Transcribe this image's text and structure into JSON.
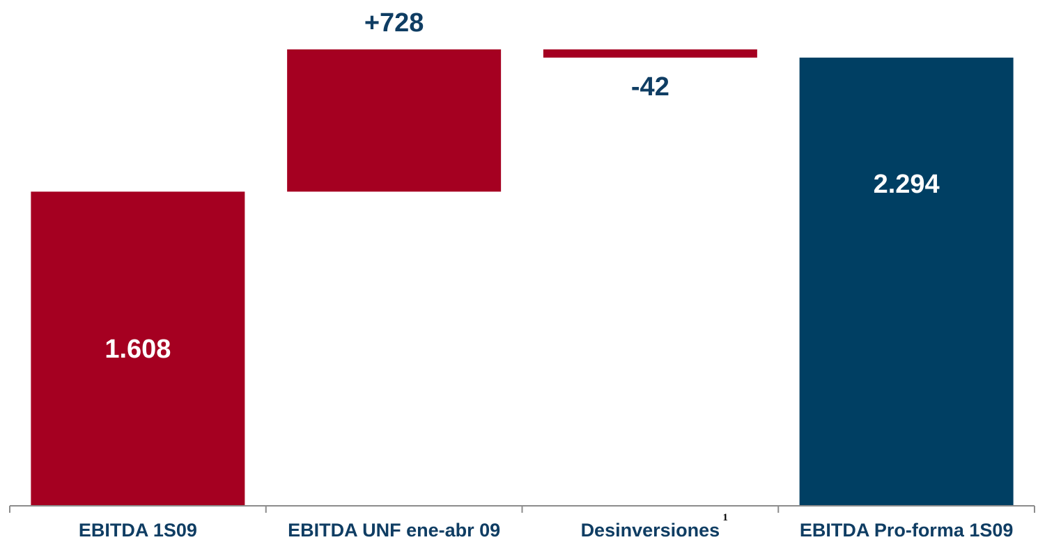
{
  "chart_data": {
    "type": "bar",
    "subtype": "waterfall",
    "categories": [
      "EBITDA 1S09",
      "EBITDA UNF ene-abr 09",
      "Desinversiones",
      "EBITDA Pro-forma 1S09"
    ],
    "values": [
      1608,
      728,
      -42,
      2294
    ],
    "bar_kinds": [
      "total",
      "delta",
      "delta",
      "total"
    ],
    "data_labels": [
      "1.608",
      "+728",
      "-42",
      "2.294"
    ],
    "category_footnotes": [
      "",
      "",
      "1",
      ""
    ],
    "colors": {
      "red": "#a50021",
      "navy": "#003f63",
      "label_navy": "#0f3d63",
      "white": "#ffffff",
      "axis": "#8c8c8c"
    },
    "bar_colors": [
      "red",
      "red",
      "red",
      "navy"
    ],
    "label_colors": [
      "white",
      "label_navy",
      "label_navy",
      "white"
    ],
    "label_positions": [
      "inside",
      "above",
      "below",
      "inside-top"
    ],
    "ylim": [
      0,
      2336
    ],
    "grid": false,
    "title": "",
    "xlabel": "",
    "ylabel": ""
  }
}
